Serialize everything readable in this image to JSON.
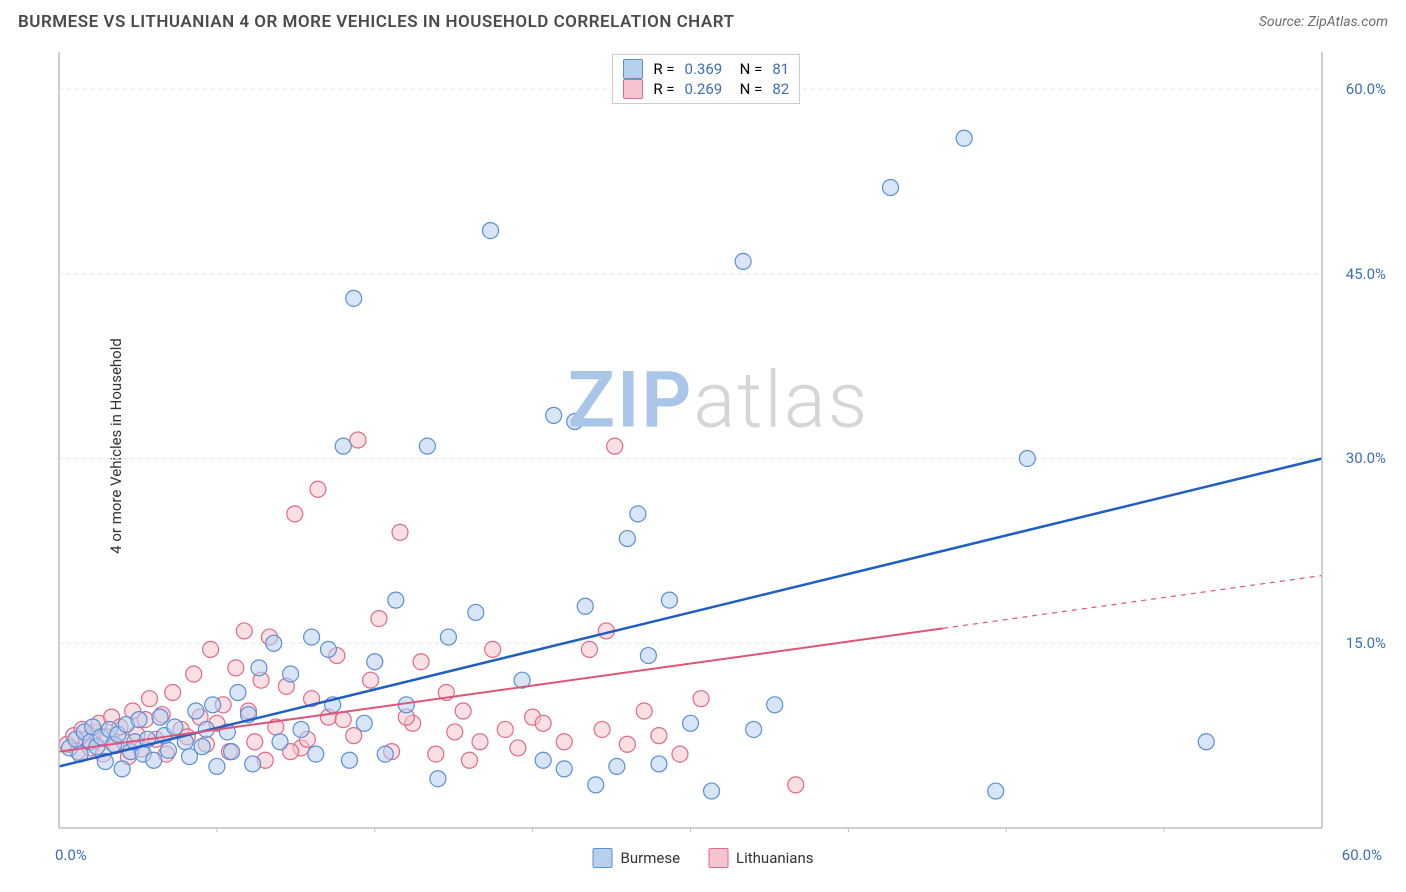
{
  "header": {
    "title": "BURMESE VS LITHUANIAN 4 OR MORE VEHICLES IN HOUSEHOLD CORRELATION CHART",
    "source_prefix": "Source: ",
    "source": "ZipAtlas.com"
  },
  "ylabel": "4 or more Vehicles in Household",
  "watermark": {
    "bold": "ZIP",
    "light": "atlas",
    "bold_color": "#a9c5e8",
    "light_color": "#d6d6d6"
  },
  "chart": {
    "type": "scatter",
    "background_color": "#ffffff",
    "axis_color": "#bfbfbf",
    "grid_color": "#e4e4e4",
    "grid_dash": "4,4",
    "xlim": [
      0,
      60
    ],
    "ylim": [
      0,
      63
    ],
    "xtick_step": 7.5,
    "ytick_labels": [
      {
        "v": 60,
        "label": "60.0%"
      },
      {
        "v": 45,
        "label": "45.0%"
      },
      {
        "v": 30,
        "label": "30.0%"
      },
      {
        "v": 15,
        "label": "15.0%"
      }
    ],
    "ytick_color": "#3b6fb6",
    "xaxis_labels": {
      "left": "0.0%",
      "right": "60.0%",
      "color": "#3b6fb6"
    },
    "marker_radius": 8,
    "marker_opacity": 0.55,
    "marker_stroke_width": 1.2,
    "series": [
      {
        "name": "Burmese",
        "color_fill": "#b7d0ee",
        "color_stroke": "#5a8fd6",
        "regression": {
          "y0": 5.0,
          "y60": 30.0,
          "stroke": "#1f5fc4",
          "width": 2.5,
          "solid_until_x": 60
        },
        "stats": {
          "R": "0.369",
          "N": "81"
        },
        "points": [
          [
            0.5,
            6.5
          ],
          [
            0.8,
            7.2
          ],
          [
            1.0,
            6.0
          ],
          [
            1.2,
            7.8
          ],
          [
            1.5,
            7.0
          ],
          [
            1.6,
            8.2
          ],
          [
            1.8,
            6.6
          ],
          [
            2.0,
            7.4
          ],
          [
            2.2,
            5.4
          ],
          [
            2.4,
            8.0
          ],
          [
            2.6,
            6.8
          ],
          [
            2.8,
            7.6
          ],
          [
            3.0,
            4.8
          ],
          [
            3.2,
            8.4
          ],
          [
            3.4,
            6.2
          ],
          [
            3.6,
            7.0
          ],
          [
            3.8,
            8.8
          ],
          [
            4.0,
            6.0
          ],
          [
            4.2,
            7.2
          ],
          [
            4.5,
            5.5
          ],
          [
            4.8,
            9.0
          ],
          [
            5.0,
            7.5
          ],
          [
            5.2,
            6.3
          ],
          [
            5.5,
            8.2
          ],
          [
            6.0,
            7.0
          ],
          [
            6.2,
            5.8
          ],
          [
            6.5,
            9.5
          ],
          [
            6.8,
            6.6
          ],
          [
            7.0,
            8.0
          ],
          [
            7.3,
            10.0
          ],
          [
            7.5,
            5.0
          ],
          [
            8.0,
            7.8
          ],
          [
            8.2,
            6.2
          ],
          [
            8.5,
            11.0
          ],
          [
            9.0,
            9.2
          ],
          [
            9.2,
            5.2
          ],
          [
            9.5,
            13.0
          ],
          [
            10.2,
            15.0
          ],
          [
            10.5,
            7.0
          ],
          [
            11.0,
            12.5
          ],
          [
            11.5,
            8.0
          ],
          [
            12.0,
            15.5
          ],
          [
            12.2,
            6.0
          ],
          [
            12.8,
            14.5
          ],
          [
            13.0,
            10.0
          ],
          [
            13.5,
            31.0
          ],
          [
            14.0,
            43.0
          ],
          [
            14.5,
            8.5
          ],
          [
            15.0,
            13.5
          ],
          [
            16.0,
            18.5
          ],
          [
            16.5,
            10.0
          ],
          [
            17.5,
            31.0
          ],
          [
            18.0,
            4.0
          ],
          [
            18.5,
            15.5
          ],
          [
            19.8,
            17.5
          ],
          [
            20.5,
            48.5
          ],
          [
            22.0,
            12.0
          ],
          [
            23.0,
            5.5
          ],
          [
            23.5,
            33.5
          ],
          [
            24.0,
            4.8
          ],
          [
            24.5,
            33.0
          ],
          [
            25.0,
            18.0
          ],
          [
            25.5,
            3.5
          ],
          [
            26.5,
            5.0
          ],
          [
            27.0,
            23.5
          ],
          [
            27.5,
            25.5
          ],
          [
            28.0,
            14.0
          ],
          [
            28.5,
            5.2
          ],
          [
            29.0,
            18.5
          ],
          [
            30.0,
            8.5
          ],
          [
            31.0,
            3.0
          ],
          [
            32.5,
            46.0
          ],
          [
            33.0,
            8.0
          ],
          [
            34.0,
            10.0
          ],
          [
            39.5,
            52.0
          ],
          [
            43.0,
            56.0
          ],
          [
            44.5,
            3.0
          ],
          [
            46.0,
            30.0
          ],
          [
            54.5,
            7.0
          ],
          [
            13.8,
            5.5
          ],
          [
            15.5,
            6.0
          ]
        ]
      },
      {
        "name": "Lithuanians",
        "color_fill": "#f6c4d0",
        "color_stroke": "#e06a8a",
        "regression": {
          "y0": 6.2,
          "y60": 20.5,
          "stroke": "#e05577",
          "width": 2,
          "solid_until_x": 42
        },
        "stats": {
          "R": "0.269",
          "N": "82"
        },
        "points": [
          [
            0.4,
            6.8
          ],
          [
            0.7,
            7.5
          ],
          [
            0.9,
            6.2
          ],
          [
            1.1,
            8.0
          ],
          [
            1.3,
            7.2
          ],
          [
            1.5,
            6.5
          ],
          [
            1.7,
            7.8
          ],
          [
            1.9,
            8.5
          ],
          [
            2.1,
            6.0
          ],
          [
            2.3,
            7.4
          ],
          [
            2.5,
            9.0
          ],
          [
            2.7,
            6.7
          ],
          [
            2.9,
            8.2
          ],
          [
            3.1,
            7.0
          ],
          [
            3.3,
            5.8
          ],
          [
            3.5,
            9.5
          ],
          [
            3.7,
            7.6
          ],
          [
            3.9,
            6.4
          ],
          [
            4.1,
            8.8
          ],
          [
            4.3,
            10.5
          ],
          [
            4.6,
            7.2
          ],
          [
            4.9,
            9.2
          ],
          [
            5.1,
            6.0
          ],
          [
            5.4,
            11.0
          ],
          [
            5.8,
            8.0
          ],
          [
            6.1,
            7.4
          ],
          [
            6.4,
            12.5
          ],
          [
            6.7,
            9.0
          ],
          [
            7.0,
            6.8
          ],
          [
            7.2,
            14.5
          ],
          [
            7.5,
            8.5
          ],
          [
            7.8,
            10.0
          ],
          [
            8.1,
            6.2
          ],
          [
            8.4,
            13.0
          ],
          [
            8.8,
            16.0
          ],
          [
            9.0,
            9.5
          ],
          [
            9.3,
            7.0
          ],
          [
            9.6,
            12.0
          ],
          [
            10.0,
            15.5
          ],
          [
            10.3,
            8.2
          ],
          [
            10.8,
            11.5
          ],
          [
            11.2,
            25.5
          ],
          [
            11.5,
            6.5
          ],
          [
            12.0,
            10.5
          ],
          [
            12.3,
            27.5
          ],
          [
            12.8,
            9.0
          ],
          [
            13.2,
            14.0
          ],
          [
            14.0,
            7.5
          ],
          [
            14.2,
            31.5
          ],
          [
            14.8,
            12.0
          ],
          [
            15.2,
            17.0
          ],
          [
            16.2,
            24.0
          ],
          [
            16.8,
            8.5
          ],
          [
            17.2,
            13.5
          ],
          [
            17.9,
            6.0
          ],
          [
            18.4,
            11.0
          ],
          [
            19.2,
            9.5
          ],
          [
            20.0,
            7.0
          ],
          [
            20.6,
            14.5
          ],
          [
            21.2,
            8.0
          ],
          [
            22.5,
            9.0
          ],
          [
            25.2,
            14.5
          ],
          [
            26.0,
            16.0
          ],
          [
            26.4,
            31.0
          ],
          [
            27.8,
            9.5
          ],
          [
            29.5,
            6.0
          ],
          [
            30.5,
            10.5
          ],
          [
            35.0,
            3.5
          ],
          [
            11.8,
            7.2
          ],
          [
            13.5,
            8.8
          ],
          [
            15.8,
            6.2
          ],
          [
            16.5,
            9.0
          ],
          [
            18.8,
            7.8
          ],
          [
            19.5,
            5.5
          ],
          [
            21.8,
            6.5
          ],
          [
            23.0,
            8.5
          ],
          [
            24.0,
            7.0
          ],
          [
            25.8,
            8.0
          ],
          [
            27.0,
            6.8
          ],
          [
            28.5,
            7.5
          ],
          [
            9.8,
            5.5
          ],
          [
            11.0,
            6.2
          ]
        ]
      }
    ]
  },
  "bottom_legend": [
    {
      "label": "Burmese",
      "fill": "#b7d0ee",
      "stroke": "#5a8fd6"
    },
    {
      "label": "Lithuanians",
      "fill": "#f6c4d0",
      "stroke": "#e06a8a"
    }
  ],
  "top_legend": {
    "stat_value_color": "#3b6fb6"
  }
}
